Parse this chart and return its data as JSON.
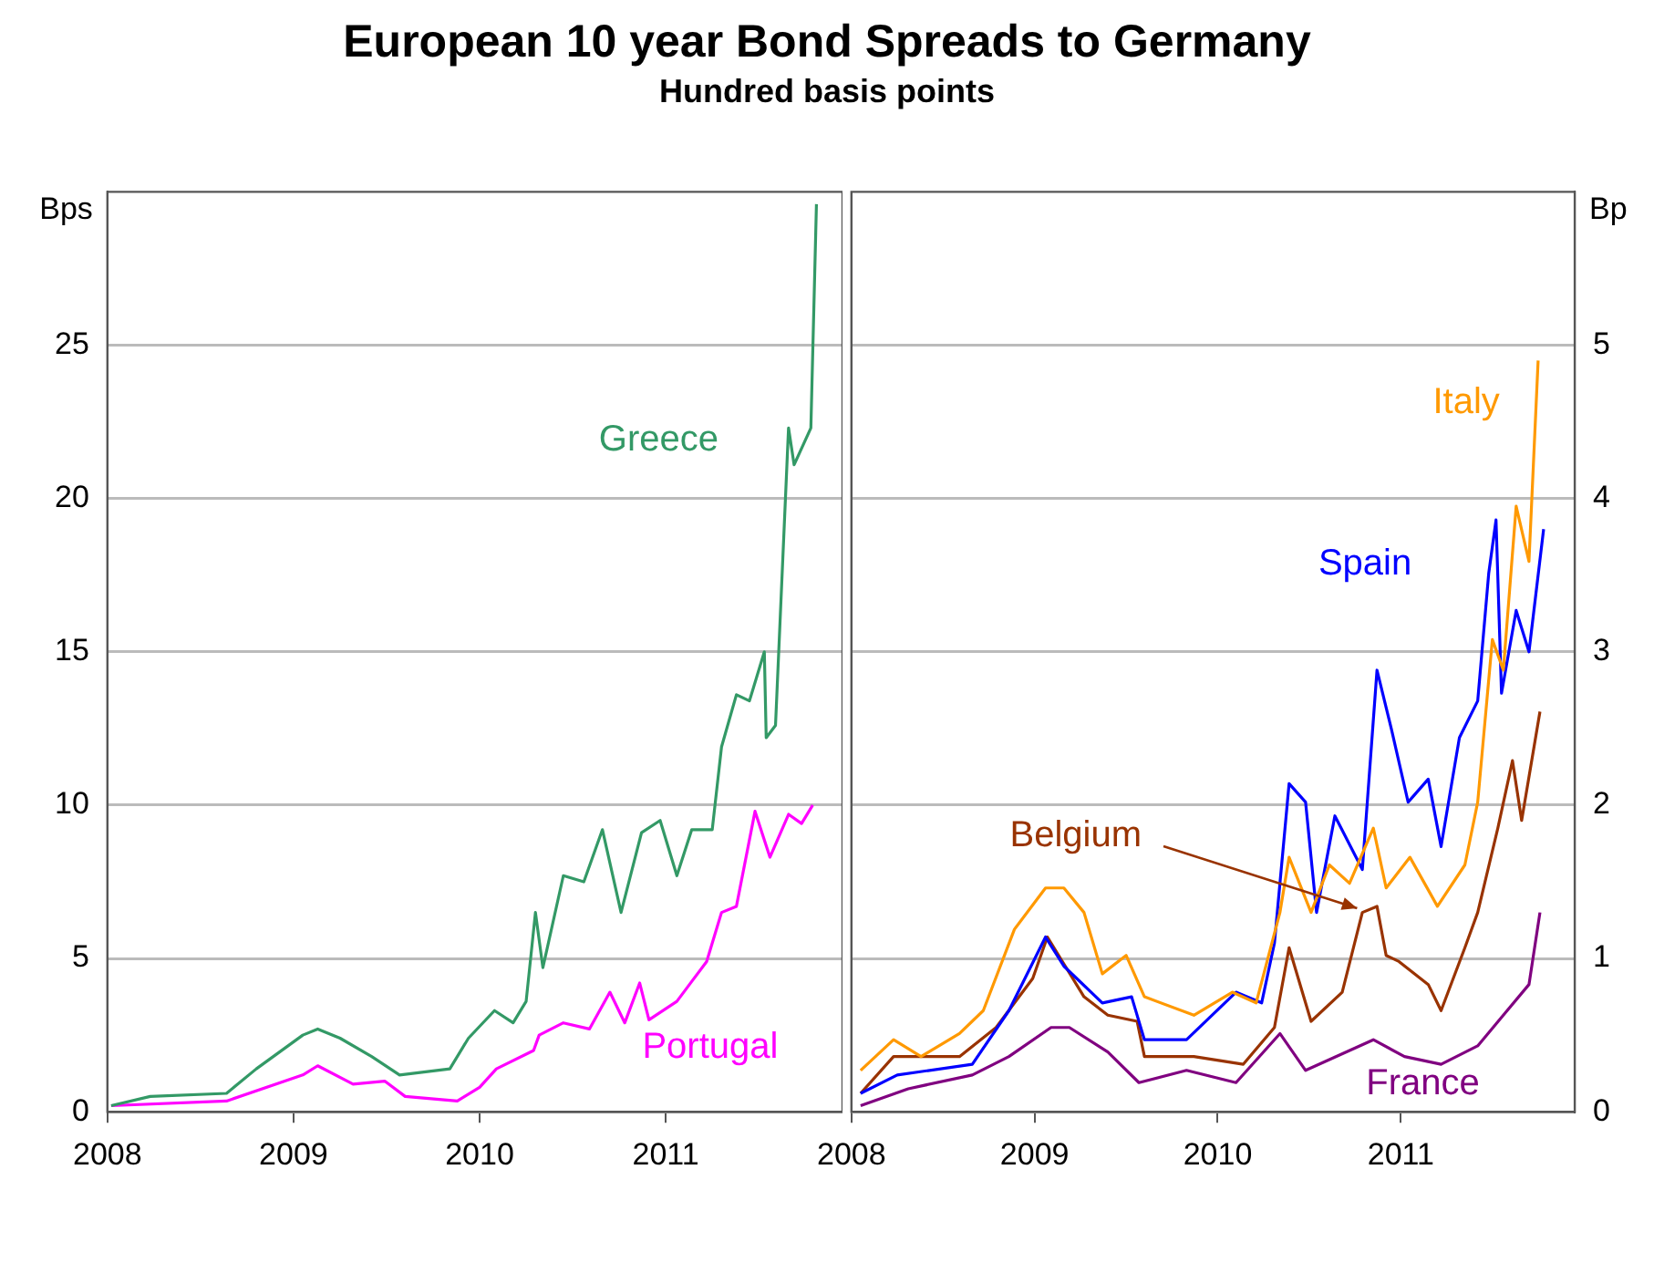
{
  "chart_data": [
    {
      "type": "line",
      "title": "European 10 year Bond Spreads to Germany",
      "subtitle": "Hundred basis points",
      "ylabel": "Bps",
      "xlim": [
        2008,
        2011.95
      ],
      "xticks": [
        2008,
        2009,
        2010,
        2011
      ],
      "ylim": [
        0,
        30
      ],
      "yticks": [
        0,
        5,
        10,
        15,
        20,
        25
      ],
      "grid": "y",
      "series": [
        {
          "name": "Greece",
          "color": "#339966",
          "x": [
            2008.02,
            2008.23,
            2008.64,
            2008.8,
            2009.05,
            2009.13,
            2009.25,
            2009.42,
            2009.57,
            2009.84,
            2009.94,
            2010.08,
            2010.18,
            2010.25,
            2010.3,
            2010.34,
            2010.45,
            2010.56,
            2010.66,
            2010.76,
            2010.87,
            2010.97,
            2011.06,
            2011.14,
            2011.25,
            2011.3,
            2011.38,
            2011.45,
            2011.53,
            2011.54,
            2011.59,
            2011.66,
            2011.69,
            2011.78,
            2011.81
          ],
          "values": [
            0.2,
            0.5,
            0.6,
            1.4,
            2.5,
            2.7,
            2.4,
            1.8,
            1.2,
            1.4,
            2.4,
            3.3,
            2.9,
            3.6,
            6.5,
            4.7,
            7.7,
            7.5,
            9.2,
            6.5,
            9.1,
            9.5,
            7.7,
            9.2,
            9.2,
            11.9,
            13.6,
            13.4,
            15,
            12.2,
            12.6,
            22.3,
            21.1,
            22.3,
            29.6
          ]
        },
        {
          "name": "Portugal",
          "color": "#ff00ff",
          "x": [
            2008.02,
            2008.64,
            2009.05,
            2009.13,
            2009.32,
            2009.49,
            2009.6,
            2009.88,
            2010.0,
            2010.09,
            2010.29,
            2010.32,
            2010.45,
            2010.59,
            2010.7,
            2010.78,
            2010.86,
            2010.91,
            2011.06,
            2011.22,
            2011.3,
            2011.38,
            2011.48,
            2011.56,
            2011.66,
            2011.73,
            2011.79
          ],
          "values": [
            0.2,
            0.35,
            1.2,
            1.5,
            0.9,
            1.0,
            0.5,
            0.35,
            0.8,
            1.4,
            2.0,
            2.5,
            2.9,
            2.7,
            3.9,
            2.9,
            4.2,
            3.0,
            3.6,
            4.9,
            6.5,
            6.7,
            9.8,
            8.3,
            9.7,
            9.4,
            10.0
          ]
        }
      ]
    },
    {
      "type": "line",
      "ylabel": "Bp",
      "xlim": [
        2008,
        2011.95
      ],
      "xticks": [
        2008,
        2009,
        2010,
        2011
      ],
      "ylim": [
        0,
        6
      ],
      "yticks": [
        0,
        1,
        2,
        3,
        4,
        5
      ],
      "grid": "y",
      "series": [
        {
          "name": "Italy",
          "color": "#ff9900",
          "x": [
            2008.05,
            2008.23,
            2008.38,
            2008.59,
            2008.72,
            2008.89,
            2009.06,
            2009.16,
            2009.27,
            2009.37,
            2009.5,
            2009.6,
            2009.87,
            2010.08,
            2010.21,
            2010.34,
            2010.39,
            2010.51,
            2010.61,
            2010.72,
            2010.85,
            2010.92,
            2011.05,
            2011.2,
            2011.35,
            2011.42,
            2011.5,
            2011.56,
            2011.63,
            2011.7,
            2011.75
          ],
          "values": [
            0.27,
            0.47,
            0.36,
            0.51,
            0.66,
            1.19,
            1.46,
            1.46,
            1.3,
            0.9,
            1.02,
            0.75,
            0.63,
            0.78,
            0.71,
            1.3,
            1.66,
            1.3,
            1.61,
            1.49,
            1.85,
            1.46,
            1.66,
            1.34,
            1.61,
            2.02,
            3.08,
            2.88,
            3.95,
            3.59,
            4.9
          ]
        },
        {
          "name": "Spain",
          "color": "#0000ff",
          "x": [
            2008.05,
            2008.25,
            2008.66,
            2008.86,
            2009.06,
            2009.16,
            2009.37,
            2009.53,
            2009.6,
            2009.83,
            2010.1,
            2010.24,
            2010.31,
            2010.39,
            2010.48,
            2010.54,
            2010.64,
            2010.79,
            2010.87,
            2010.95,
            2011.04,
            2011.15,
            2011.22,
            2011.32,
            2011.42,
            2011.48,
            2011.52,
            2011.55,
            2011.63,
            2011.7,
            2011.78
          ],
          "values": [
            0.12,
            0.24,
            0.31,
            0.66,
            1.14,
            0.95,
            0.71,
            0.75,
            0.47,
            0.47,
            0.78,
            0.71,
            1.1,
            2.14,
            2.02,
            1.3,
            1.93,
            1.58,
            2.88,
            2.49,
            2.02,
            2.17,
            1.73,
            2.44,
            2.68,
            3.51,
            3.86,
            2.73,
            3.27,
            3.0,
            3.8
          ]
        },
        {
          "name": "Belgium",
          "color": "#993300",
          "x": [
            2008.05,
            2008.23,
            2008.59,
            2008.79,
            2008.99,
            2009.07,
            2009.27,
            2009.4,
            2009.56,
            2009.6,
            2009.87,
            2010.14,
            2010.31,
            2010.39,
            2010.51,
            2010.68,
            2010.79,
            2010.87,
            2010.92,
            2010.99,
            2011.15,
            2011.22,
            2011.35,
            2011.42,
            2011.53,
            2011.61,
            2011.66,
            2011.76
          ],
          "values": [
            0.12,
            0.36,
            0.36,
            0.55,
            0.87,
            1.14,
            0.75,
            0.63,
            0.59,
            0.36,
            0.36,
            0.31,
            0.55,
            1.07,
            0.59,
            0.78,
            1.3,
            1.34,
            1.02,
            0.98,
            0.83,
            0.66,
            1.07,
            1.3,
            1.85,
            2.29,
            1.9,
            2.61
          ]
        },
        {
          "name": "France",
          "color": "#800080",
          "x": [
            2008.05,
            2008.31,
            2008.66,
            2008.86,
            2009.09,
            2009.19,
            2009.4,
            2009.57,
            2009.83,
            2010.1,
            2010.34,
            2010.48,
            2010.85,
            2011.02,
            2011.22,
            2011.42,
            2011.56,
            2011.7,
            2011.76
          ],
          "values": [
            0.04,
            0.15,
            0.24,
            0.36,
            0.55,
            0.55,
            0.39,
            0.19,
            0.27,
            0.19,
            0.51,
            0.27,
            0.47,
            0.36,
            0.31,
            0.43,
            0.63,
            0.83,
            1.3
          ]
        }
      ]
    }
  ]
}
